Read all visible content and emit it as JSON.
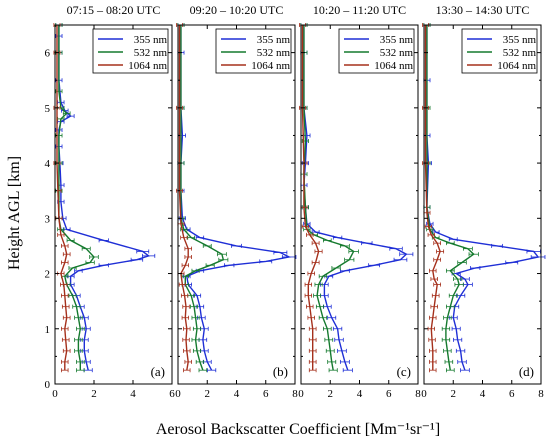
{
  "chart_data": {
    "type": "line",
    "ylabel": "Height AGL [km]",
    "xlabel": "Aerosol Backscatter Coefficient [Mm⁻¹sr⁻¹]",
    "ylim": [
      0,
      6.5
    ],
    "yticks": [
      0,
      1,
      2,
      3,
      4,
      5,
      6
    ],
    "legend_position": "top-right",
    "colors": {
      "355 nm": "#1f2fd6",
      "532 nm": "#157a2e",
      "1064 nm": "#a5301c"
    },
    "panels": [
      {
        "title": "07:15 – 08:20 UTC",
        "label": "(a)",
        "xlim": [
          0,
          6
        ],
        "xticks": [
          0,
          2,
          4,
          6
        ],
        "legend": [
          "355 nm",
          "532 nm",
          "1064 nm"
        ],
        "series": [
          {
            "name": "355 nm",
            "x": [
              1.7,
              1.6,
              1.5,
              1.5,
              1.6,
              1.5,
              1.3,
              1.1,
              0.8,
              0.8,
              1.2,
              2.5,
              4.2,
              4.8,
              4.5,
              2.5,
              0.6,
              0.4,
              0.3,
              0.3,
              0.25,
              0.2,
              0.2,
              0.3,
              0.8,
              0.5,
              0.3,
              0.2,
              0.2,
              0.2,
              0.2
            ],
            "y": [
              0.25,
              0.4,
              0.6,
              0.8,
              1.0,
              1.2,
              1.4,
              1.6,
              1.8,
              1.95,
              2.05,
              2.15,
              2.25,
              2.32,
              2.4,
              2.6,
              2.8,
              3.0,
              3.3,
              3.6,
              4.0,
              4.3,
              4.6,
              4.75,
              4.85,
              4.95,
              5.1,
              5.5,
              6.0,
              6.3,
              6.5
            ]
          },
          {
            "name": "532 nm",
            "x": [
              1.3,
              1.3,
              1.2,
              1.2,
              1.3,
              1.2,
              1.1,
              0.9,
              0.6,
              0.5,
              0.9,
              1.8,
              2.0,
              1.6,
              0.8,
              0.3,
              0.2,
              0.2,
              0.2,
              0.2,
              0.3,
              0.6,
              0.3,
              0.2,
              0.2,
              0.2
            ],
            "y": [
              0.25,
              0.4,
              0.6,
              0.8,
              1.0,
              1.2,
              1.4,
              1.6,
              1.8,
              1.95,
              2.1,
              2.2,
              2.3,
              2.45,
              2.6,
              2.8,
              3.0,
              3.5,
              4.0,
              4.5,
              4.8,
              4.9,
              5.0,
              5.3,
              6.0,
              6.5
            ]
          },
          {
            "name": "1064 nm",
            "x": [
              0.5,
              0.5,
              0.6,
              0.55,
              0.5,
              0.6,
              0.55,
              0.5,
              0.45,
              0.3,
              0.5,
              0.6,
              0.5,
              0.3,
              0.2,
              0.15,
              0.1,
              0.1,
              0.1,
              0.1
            ],
            "y": [
              0.25,
              0.4,
              0.6,
              0.8,
              1.0,
              1.2,
              1.4,
              1.6,
              1.8,
              2.0,
              2.2,
              2.35,
              2.5,
              2.7,
              3.0,
              3.5,
              4.0,
              5.0,
              6.0,
              6.5
            ]
          }
        ]
      },
      {
        "title": "09:20 – 10:20 UTC",
        "label": "(b)",
        "xlim": [
          0,
          8
        ],
        "xticks": [
          0,
          2,
          4,
          6,
          8
        ],
        "legend": [
          "355 nm",
          "532 nm",
          "1064 nm"
        ],
        "series": [
          {
            "name": "355 nm",
            "x": [
              2.3,
              2.0,
              1.8,
              1.7,
              1.8,
              1.6,
              1.5,
              1.3,
              0.7,
              0.6,
              1.5,
              3.5,
              6.0,
              7.6,
              7.0,
              4.0,
              1.5,
              0.6,
              0.3,
              0.2,
              0.2,
              0.3,
              0.2,
              0.2,
              0.2
            ],
            "y": [
              0.25,
              0.4,
              0.6,
              0.8,
              1.0,
              1.2,
              1.4,
              1.6,
              1.8,
              1.95,
              2.05,
              2.15,
              2.22,
              2.3,
              2.38,
              2.5,
              2.65,
              2.8,
              3.0,
              3.5,
              4.0,
              4.5,
              5.0,
              6.0,
              6.5
            ]
          },
          {
            "name": "532 nm",
            "x": [
              1.7,
              1.5,
              1.3,
              1.2,
              1.3,
              1.2,
              1.1,
              0.9,
              0.5,
              0.5,
              1.2,
              2.2,
              3.1,
              3.0,
              2.0,
              0.9,
              0.4,
              0.2,
              0.2,
              0.2,
              0.2
            ],
            "y": [
              0.25,
              0.4,
              0.6,
              0.8,
              1.0,
              1.2,
              1.4,
              1.6,
              1.8,
              1.95,
              2.05,
              2.15,
              2.25,
              2.35,
              2.5,
              2.65,
              2.8,
              3.0,
              4.0,
              5.0,
              6.5
            ]
          },
          {
            "name": "1064 nm",
            "x": [
              0.6,
              0.7,
              0.6,
              0.55,
              0.6,
              0.5,
              0.55,
              0.45,
              0.3,
              0.2,
              0.5,
              0.7,
              0.7,
              0.4,
              0.2,
              0.1,
              0.1,
              0.1
            ],
            "y": [
              0.25,
              0.4,
              0.6,
              0.8,
              1.0,
              1.2,
              1.4,
              1.6,
              1.8,
              2.0,
              2.15,
              2.3,
              2.45,
              2.65,
              2.9,
              3.5,
              5.0,
              6.5
            ]
          }
        ]
      },
      {
        "title": "10:20 – 11:20 UTC",
        "label": "(c)",
        "xlim": [
          0,
          8
        ],
        "xticks": [
          0,
          2,
          4,
          6,
          8
        ],
        "legend": [
          "355 nm",
          "532 nm",
          "1064 nm"
        ],
        "series": [
          {
            "name": "355 nm",
            "x": [
              3.2,
              3.0,
              2.8,
              2.6,
              2.5,
              2.1,
              1.8,
              1.6,
              1.6,
              1.9,
              3.0,
              5.0,
              6.8,
              7.2,
              6.5,
              4.5,
              2.5,
              1.0,
              0.4,
              0.3,
              0.2,
              0.3,
              0.4,
              0.2,
              0.2,
              0.2
            ],
            "y": [
              0.25,
              0.4,
              0.6,
              0.8,
              1.0,
              1.2,
              1.4,
              1.6,
              1.8,
              1.95,
              2.05,
              2.15,
              2.25,
              2.35,
              2.45,
              2.55,
              2.65,
              2.75,
              2.9,
              3.2,
              3.6,
              4.0,
              4.5,
              5.0,
              6.0,
              6.5
            ]
          },
          {
            "name": "532 nm",
            "x": [
              2.2,
              2.1,
              2.0,
              1.9,
              1.8,
              1.5,
              1.3,
              1.1,
              1.2,
              1.5,
              2.4,
              3.3,
              3.6,
              3.0,
              1.8,
              0.9,
              0.4,
              0.3,
              0.2,
              0.3,
              0.2,
              0.2,
              0.2
            ],
            "y": [
              0.25,
              0.4,
              0.6,
              0.8,
              1.0,
              1.2,
              1.4,
              1.6,
              1.8,
              1.95,
              2.1,
              2.25,
              2.4,
              2.5,
              2.6,
              2.7,
              2.8,
              3.2,
              3.8,
              4.4,
              5.0,
              6.0,
              6.5
            ]
          },
          {
            "name": "1064 nm",
            "x": [
              0.8,
              0.8,
              0.8,
              0.8,
              0.8,
              0.7,
              0.6,
              0.5,
              0.5,
              0.7,
              1.0,
              1.2,
              1.0,
              0.6,
              0.3,
              0.2,
              0.2,
              0.1,
              0.1
            ],
            "y": [
              0.25,
              0.4,
              0.6,
              0.8,
              1.0,
              1.2,
              1.4,
              1.6,
              1.8,
              2.0,
              2.2,
              2.4,
              2.55,
              2.7,
              2.85,
              3.2,
              4.0,
              5.0,
              6.5
            ]
          }
        ]
      },
      {
        "title": "13:30 – 14:30 UTC",
        "label": "(d)",
        "xlim": [
          0,
          8
        ],
        "xticks": [
          0,
          2,
          4,
          6,
          8
        ],
        "legend": [
          "355 nm",
          "532 nm",
          "1064 nm"
        ],
        "series": [
          {
            "name": "355 nm",
            "x": [
              2.8,
              2.6,
              2.5,
              2.3,
              2.2,
              2.0,
              2.1,
              2.5,
              3.0,
              2.8,
              2.2,
              3.5,
              6.0,
              7.8,
              7.5,
              5.0,
              2.0,
              0.8,
              0.4,
              0.2,
              0.3,
              0.2,
              0.2,
              0.2
            ],
            "y": [
              0.25,
              0.4,
              0.6,
              0.8,
              1.0,
              1.2,
              1.4,
              1.6,
              1.8,
              1.9,
              2.0,
              2.1,
              2.2,
              2.3,
              2.4,
              2.5,
              2.62,
              2.75,
              2.9,
              3.2,
              4.0,
              4.5,
              5.5,
              6.5
            ]
          },
          {
            "name": "532 nm",
            "x": [
              1.8,
              1.7,
              1.6,
              1.5,
              1.5,
              1.6,
              1.8,
              2.0,
              2.4,
              2.3,
              1.8,
              2.6,
              3.4,
              3.0,
              1.8,
              0.8,
              0.4,
              0.2,
              0.2,
              0.2,
              0.2
            ],
            "y": [
              0.25,
              0.4,
              0.6,
              0.8,
              1.0,
              1.2,
              1.4,
              1.6,
              1.8,
              1.9,
              2.05,
              2.2,
              2.35,
              2.45,
              2.55,
              2.65,
              2.8,
              3.2,
              4.0,
              5.0,
              6.5
            ]
          },
          {
            "name": "1064 nm",
            "x": [
              0.6,
              0.6,
              0.6,
              0.55,
              0.5,
              0.6,
              0.7,
              0.8,
              0.9,
              0.7,
              0.6,
              0.9,
              1.1,
              0.9,
              0.5,
              0.3,
              0.2,
              0.1,
              0.1,
              0.1
            ],
            "y": [
              0.25,
              0.4,
              0.6,
              0.8,
              1.0,
              1.2,
              1.4,
              1.6,
              1.8,
              1.9,
              2.05,
              2.25,
              2.4,
              2.55,
              2.7,
              2.85,
              3.1,
              4.0,
              5.0,
              6.5
            ]
          }
        ]
      }
    ]
  }
}
